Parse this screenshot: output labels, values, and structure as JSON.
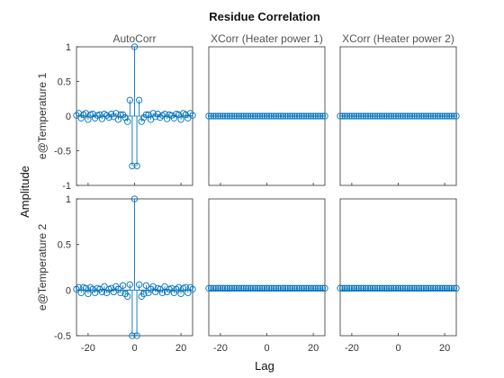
{
  "chart_data": {
    "type": "stem",
    "title": "Residue Correlation",
    "xlabel": "Lag",
    "ylabel": "Amplitude",
    "column_titles": [
      "AutoCorr",
      "XCorr (Heater power 1)",
      "XCorr (Heater power 2)"
    ],
    "row_labels": [
      "e@Temperature 1",
      "e@Temperature 2"
    ],
    "lags": [
      -25,
      -24,
      -23,
      -22,
      -21,
      -20,
      -19,
      -18,
      -17,
      -16,
      -15,
      -14,
      -13,
      -12,
      -11,
      -10,
      -9,
      -8,
      -7,
      -6,
      -5,
      -4,
      -3,
      -2,
      -1,
      0,
      1,
      2,
      3,
      4,
      5,
      6,
      7,
      8,
      9,
      10,
      11,
      12,
      13,
      14,
      15,
      16,
      17,
      18,
      19,
      20,
      21,
      22,
      23,
      24,
      25
    ],
    "xlim": [
      -25,
      25
    ],
    "xticks": [
      -20,
      0,
      20
    ],
    "grid": false,
    "colors": {
      "stem": "#0072bd",
      "axes": "#333333"
    },
    "rows": [
      {
        "ylim": [
          -1,
          1
        ],
        "yticks": [
          1,
          0.5,
          0,
          -0.5,
          -1
        ],
        "ytick_labels": [
          "1",
          "0.5",
          "0",
          "-0.5",
          "-1"
        ],
        "autocorr": [
          0.01,
          0.04,
          -0.03,
          0.02,
          0.04,
          -0.05,
          0.02,
          0.03,
          -0.03,
          0.01,
          0.02,
          -0.04,
          0.03,
          0.01,
          -0.02,
          0.03,
          -0.01,
          0.04,
          -0.05,
          0.02,
          0.02,
          -0.02,
          -0.08,
          0.23,
          -0.72,
          1.0,
          -0.72,
          0.23,
          -0.08,
          -0.02,
          0.02,
          0.02,
          -0.05,
          0.04,
          -0.01,
          0.03,
          -0.02,
          0.01,
          0.03,
          -0.04,
          0.02,
          0.01,
          -0.03,
          0.03,
          0.02,
          -0.05,
          0.04,
          0.02,
          -0.03,
          0.04,
          0.01
        ],
        "xcorr_heater_power_1": 0.0,
        "xcorr_heater_power_2": 0.0
      },
      {
        "ylim": [
          -0.5,
          1
        ],
        "yticks": [
          1,
          0.5,
          0,
          -0.5
        ],
        "ytick_labels": [
          "1",
          "0.5",
          "0",
          "-0.5"
        ],
        "autocorr": [
          0.01,
          0.03,
          -0.03,
          0.03,
          0.02,
          -0.04,
          0.03,
          0.01,
          -0.03,
          0.02,
          0.01,
          -0.02,
          0.04,
          -0.03,
          0.01,
          0.02,
          -0.02,
          0.04,
          0.01,
          -0.03,
          0.05,
          -0.04,
          -0.07,
          0.06,
          -0.5,
          1.0,
          -0.5,
          0.06,
          -0.07,
          -0.04,
          0.05,
          -0.03,
          0.01,
          0.04,
          -0.02,
          0.02,
          0.01,
          -0.03,
          0.04,
          -0.02,
          0.01,
          0.02,
          -0.03,
          0.01,
          0.03,
          -0.04,
          0.02,
          0.03,
          -0.03,
          0.03,
          0.01
        ],
        "xcorr_heater_power_1": 0.02,
        "xcorr_heater_power_2": 0.02
      }
    ]
  }
}
